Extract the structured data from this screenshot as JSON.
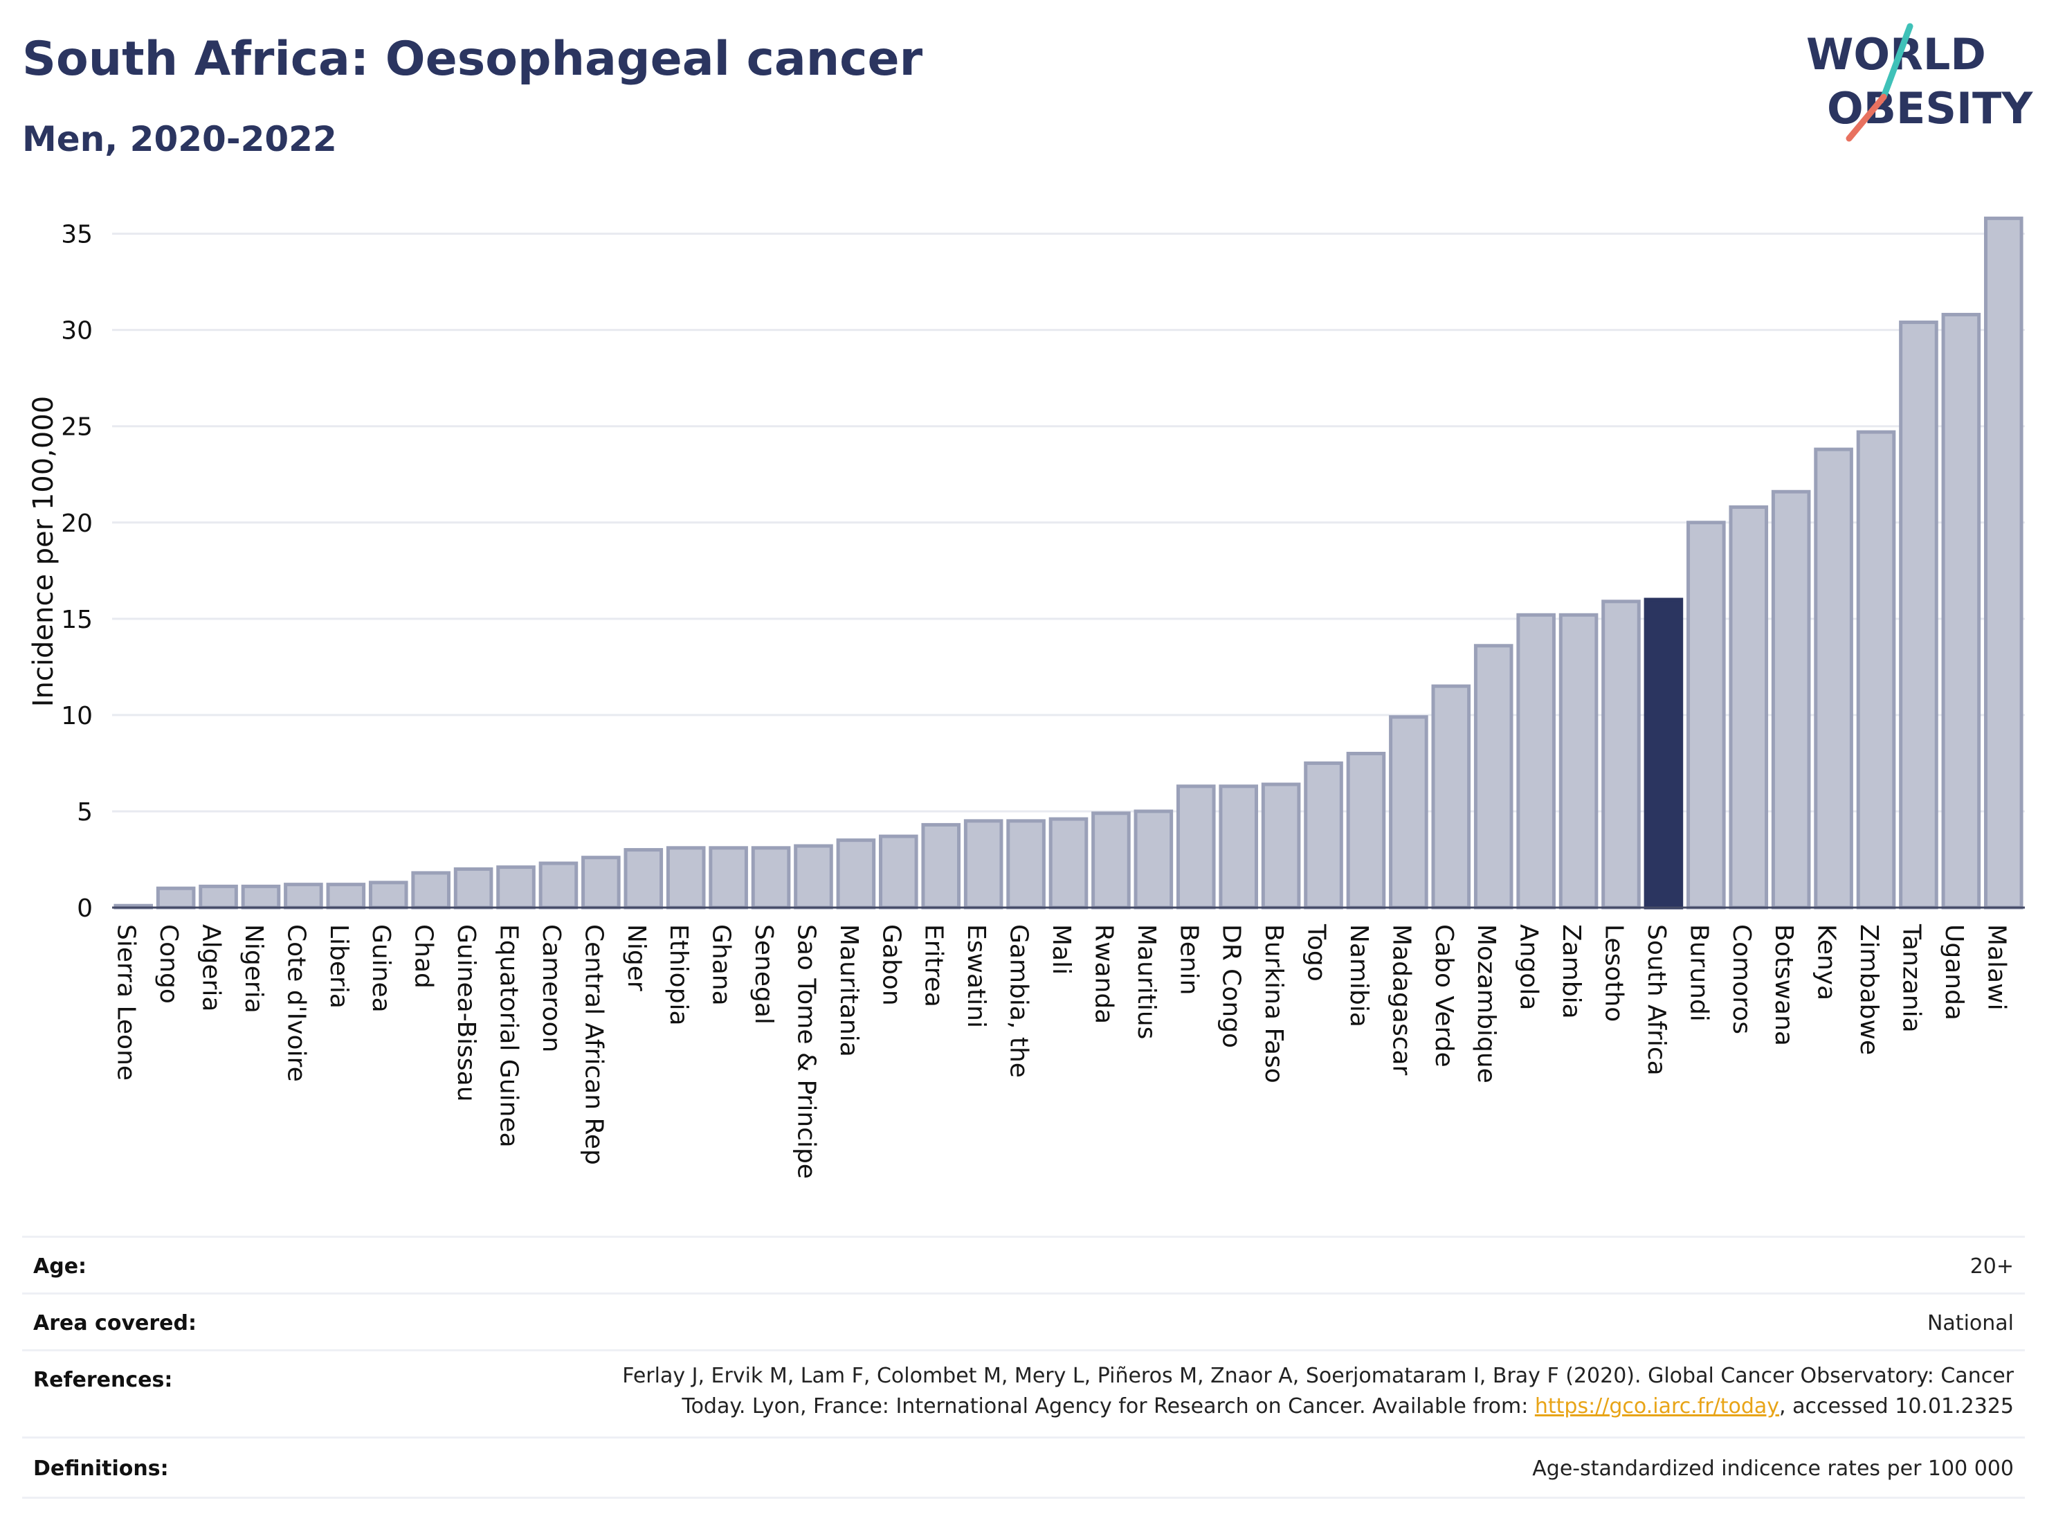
{
  "header": {
    "title": "South Africa: Oesophageal cancer",
    "subtitle": "Men, 2020-2022"
  },
  "logo": {
    "line1": "WORLD",
    "line2": "OBESITY",
    "slash_colors": [
      "#3fc1b8",
      "#e8715f"
    ],
    "text_color": "#2b3560"
  },
  "colors": {
    "bar_default": "#bfc3d2",
    "bar_default_stroke": "#9aa0b8",
    "bar_highlight": "#2b3560",
    "grid": "#e8eaf0",
    "axis": "#444a66"
  },
  "chart_data": {
    "type": "bar",
    "ylabel": "Incidence per 100,000",
    "ylim": [
      0,
      37
    ],
    "yticks": [
      0,
      5,
      10,
      15,
      20,
      25,
      30,
      35
    ],
    "grid": true,
    "highlight": "South Africa",
    "categories": [
      "Sierra Leone",
      "Congo",
      "Algeria",
      "Nigeria",
      "Cote d'Ivoire",
      "Liberia",
      "Guinea",
      "Chad",
      "Guinea-Bissau",
      "Equatorial Guinea",
      "Cameroon",
      "Central African Rep",
      "Niger",
      "Ethiopia",
      "Ghana",
      "Senegal",
      "Sao Tome & Principe",
      "Mauritania",
      "Gabon",
      "Eritrea",
      "Eswatini",
      "Gambia, the",
      "Mali",
      "Rwanda",
      "Mauritius",
      "Benin",
      "DR Congo",
      "Burkina Faso",
      "Togo",
      "Namibia",
      "Madagascar",
      "Cabo Verde",
      "Mozambique",
      "Angola",
      "Zambia",
      "Lesotho",
      "South Africa",
      "Burundi",
      "Comoros",
      "Botswana",
      "Kenya",
      "Zimbabwe",
      "Tanzania",
      "Uganda",
      "Malawi"
    ],
    "values": [
      0.1,
      1.0,
      1.1,
      1.1,
      1.2,
      1.2,
      1.3,
      1.8,
      2.0,
      2.1,
      2.3,
      2.6,
      3.0,
      3.1,
      3.1,
      3.1,
      3.2,
      3.5,
      3.7,
      4.3,
      4.5,
      4.5,
      4.6,
      4.9,
      5.0,
      6.3,
      6.3,
      6.4,
      7.5,
      8.0,
      9.9,
      11.5,
      13.6,
      15.2,
      15.2,
      15.9,
      16.0,
      20.0,
      20.8,
      21.6,
      23.8,
      24.7,
      30.4,
      30.8,
      35.8
    ]
  },
  "info": {
    "age_label": "Age:",
    "age_value": "20+",
    "area_label": "Area covered:",
    "area_value": "National",
    "references_label": "References:",
    "references_line1": "Ferlay J, Ervik M, Lam F, Colombet M, Mery L, Piñeros M, Znaor A, Soerjomataram I, Bray F (2020). Global Cancer Observatory: Cancer",
    "references_line2_pre": "Today. Lyon, France: International Agency for Research on Cancer. Available from: ",
    "references_link": "https://gco.iarc.fr/today",
    "references_line2_post": ", accessed 10.01.2325",
    "definitions_label": "Definitions:",
    "definitions_value": "Age-standardized indicence rates per 100 000"
  }
}
